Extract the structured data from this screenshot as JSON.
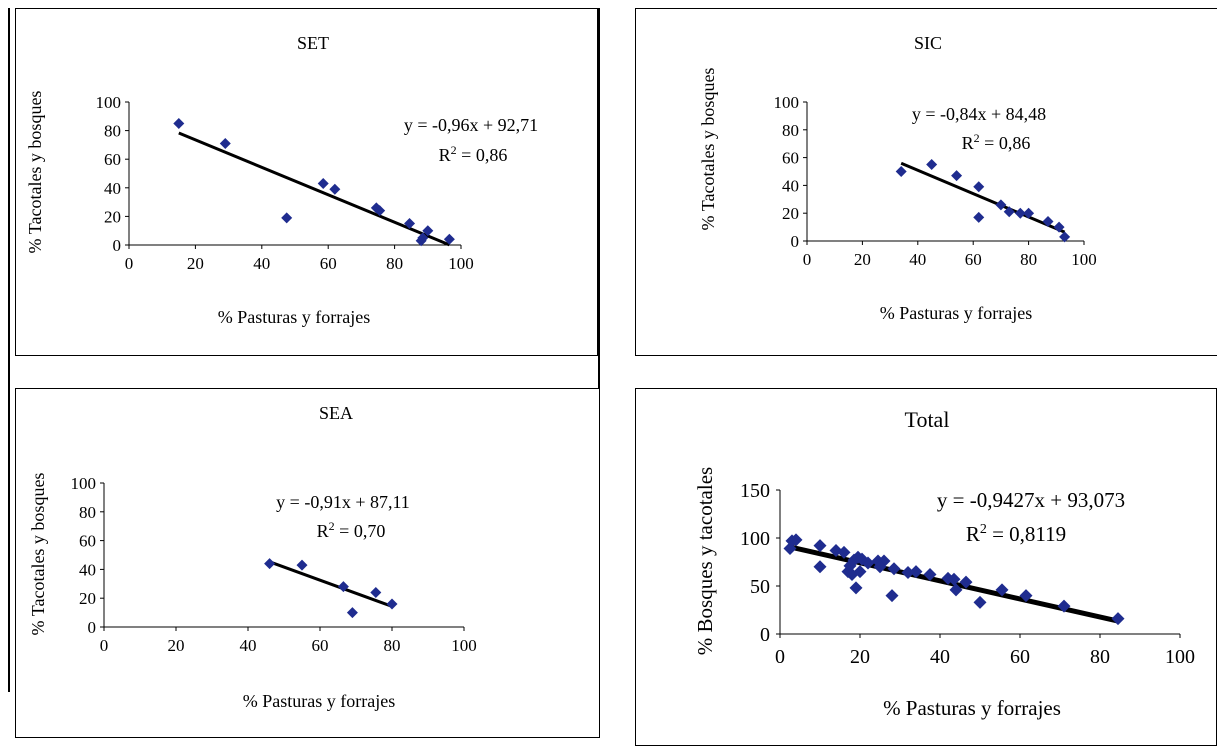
{
  "chart_data": [
    {
      "type": "scatter",
      "title": "SET",
      "xlabel": "% Pasturas y forrajes",
      "ylabel": "% Tacotales y bosques",
      "xlim": [
        0,
        100
      ],
      "ylim": [
        0,
        100
      ],
      "xticks": [
        "0",
        "20",
        "40",
        "60",
        "80",
        "100"
      ],
      "yticks": [
        "0",
        "20",
        "40",
        "60",
        "80",
        "100"
      ],
      "points": [
        [
          15,
          85
        ],
        [
          29,
          71
        ],
        [
          47.5,
          19
        ],
        [
          58.5,
          43
        ],
        [
          62,
          39
        ],
        [
          74.5,
          26
        ],
        [
          75.5,
          24
        ],
        [
          84.5,
          15
        ],
        [
          88,
          3
        ],
        [
          88.5,
          5
        ],
        [
          90,
          10
        ],
        [
          96.5,
          4
        ]
      ],
      "trendline": {
        "slope": -0.96,
        "intercept": 92.71,
        "x_range": [
          15,
          96.5
        ]
      },
      "equation": "y = -0,96x + 92,71",
      "r2_label": "R",
      "r2_sup": "2",
      "r2_value": " = 0,86",
      "marker_color": "#1f2c8f",
      "line_color": "#000000"
    },
    {
      "type": "scatter",
      "title": "SIC",
      "xlabel": "% Pasturas y forrajes",
      "ylabel": "% Tacotales y bosques",
      "xlim": [
        0,
        100
      ],
      "ylim": [
        0,
        100
      ],
      "xticks": [
        "0",
        "20",
        "40",
        "60",
        "80",
        "100"
      ],
      "yticks": [
        "0",
        "20",
        "40",
        "60",
        "80",
        "100"
      ],
      "points": [
        [
          34,
          50
        ],
        [
          45,
          55
        ],
        [
          54,
          47
        ],
        [
          62,
          39
        ],
        [
          62,
          17
        ],
        [
          70,
          26
        ],
        [
          73,
          21
        ],
        [
          77,
          20
        ],
        [
          80,
          20
        ],
        [
          87,
          14
        ],
        [
          91,
          10
        ],
        [
          93,
          3
        ]
      ],
      "trendline": {
        "slope": -0.84,
        "intercept": 84.48,
        "x_range": [
          34,
          93
        ]
      },
      "equation": "y = -0,84x + 84,48",
      "r2_label": "R",
      "r2_sup": "2",
      "r2_value": " = 0,86",
      "marker_color": "#1f2c8f",
      "line_color": "#000000"
    },
    {
      "type": "scatter",
      "title": "SEA",
      "xlabel": "% Pasturas y forrajes",
      "ylabel": "% Tacotales y bosques",
      "xlim": [
        0,
        100
      ],
      "ylim": [
        0,
        100
      ],
      "xticks": [
        "0",
        "20",
        "40",
        "60",
        "80",
        "100"
      ],
      "yticks": [
        "0",
        "20",
        "40",
        "60",
        "80",
        "100"
      ],
      "points": [
        [
          46,
          44
        ],
        [
          55,
          43
        ],
        [
          66.5,
          28
        ],
        [
          69,
          10
        ],
        [
          75.5,
          24
        ],
        [
          80,
          16
        ]
      ],
      "trendline": {
        "slope": -0.91,
        "intercept": 87.11,
        "x_range": [
          46,
          80
        ]
      },
      "equation": "y = -0,91x + 87,11",
      "r2_label": "R",
      "r2_sup": "2",
      "r2_value": " = 0,70",
      "marker_color": "#1f2c8f",
      "line_color": "#000000"
    },
    {
      "type": "scatter",
      "title": "Total",
      "xlabel": "% Pasturas y forrajes",
      "ylabel": "% Bosques y tacotales",
      "xlim": [
        0,
        100
      ],
      "ylim": [
        0,
        150
      ],
      "xticks": [
        "0",
        "20",
        "40",
        "60",
        "80",
        "100"
      ],
      "yticks": [
        "0",
        "50",
        "100",
        "150"
      ],
      "points": [
        [
          2.5,
          89
        ],
        [
          3,
          97
        ],
        [
          4,
          98
        ],
        [
          10,
          92
        ],
        [
          10,
          70
        ],
        [
          14,
          87
        ],
        [
          16,
          85
        ],
        [
          17,
          65
        ],
        [
          17.5,
          71
        ],
        [
          18,
          62
        ],
        [
          18.5,
          77
        ],
        [
          19,
          48
        ],
        [
          19.5,
          80
        ],
        [
          20,
          65
        ],
        [
          20.5,
          78
        ],
        [
          22,
          74
        ],
        [
          24.5,
          76
        ],
        [
          26,
          76
        ],
        [
          25,
          70
        ],
        [
          28,
          40
        ],
        [
          28.5,
          68
        ],
        [
          32,
          64
        ],
        [
          34,
          65
        ],
        [
          37.5,
          62
        ],
        [
          42,
          58
        ],
        [
          43.5,
          57
        ],
        [
          44,
          46
        ],
        [
          46.5,
          54
        ],
        [
          50,
          33
        ],
        [
          55.5,
          46
        ],
        [
          61.5,
          40
        ],
        [
          71,
          29
        ],
        [
          84.5,
          16
        ]
      ],
      "trendline": {
        "slope": -0.9427,
        "intercept": 93.073,
        "x_range": [
          2.5,
          84.5
        ]
      },
      "equation": "y = -0,9427x + 93,073",
      "r2_label": "R",
      "r2_sup": "2",
      "r2_value": " = 0,8119",
      "marker_color": "#1f2c8f",
      "line_color": "#000000"
    }
  ]
}
